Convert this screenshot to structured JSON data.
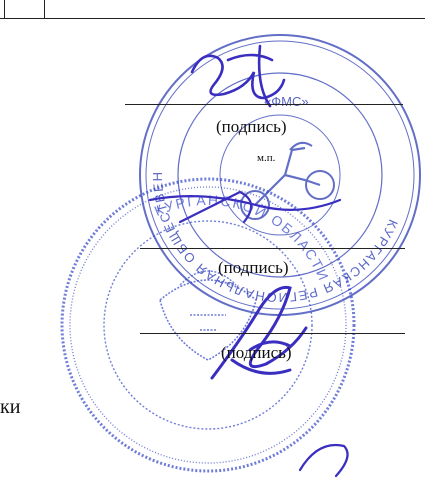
{
  "signature_block": {
    "captions": [
      "(подпись)",
      "(подпись)",
      "(подпись)"
    ],
    "stamp_mark": "м.п.",
    "trailing_text": "ки"
  },
  "stamps": {
    "round_seal_text": "КУРГАНСКАЯ РЕГИОНАЛЬНАЯ ОБЩЕСТВЕННАЯ ОРГАНИЗАЦИЯ",
    "round_seal_inner": "«ФМС»",
    "state_seal_text": "КУРГАНСКОЙ ОБЛАСТИ",
    "colors": {
      "ink": "#2f3fb5",
      "signature": "#3a2ec0",
      "text": "#111111"
    }
  }
}
